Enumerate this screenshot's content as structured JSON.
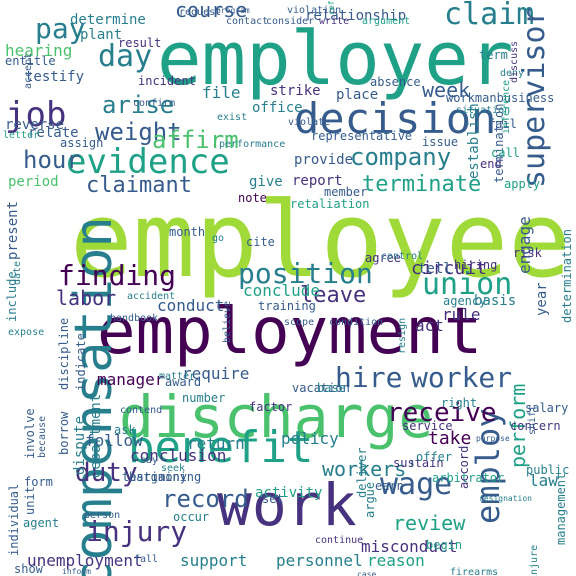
{
  "colors": {
    "background": "#ffffff",
    "palette": [
      "#440154",
      "#46327e",
      "#365c8d",
      "#277f8e",
      "#1fa187",
      "#4ac16d",
      "#a0da39",
      "#fde725"
    ]
  },
  "words": [
    {
      "text": "employee"
    },
    {
      "text": "employer"
    },
    {
      "text": "employment"
    },
    {
      "text": "work"
    },
    {
      "text": "discharge"
    },
    {
      "text": "compensation"
    },
    {
      "text": "decision"
    },
    {
      "text": "benefit"
    },
    {
      "text": "evidence"
    },
    {
      "text": "claim"
    },
    {
      "text": "supervisor"
    },
    {
      "text": "union"
    },
    {
      "text": "position"
    },
    {
      "text": "finding"
    },
    {
      "text": "job"
    },
    {
      "text": "wage"
    },
    {
      "text": "employ"
    },
    {
      "text": "day"
    },
    {
      "text": "hire"
    },
    {
      "text": "worker"
    },
    {
      "text": "receive"
    },
    {
      "text": "injury"
    },
    {
      "text": "duty"
    },
    {
      "text": "record"
    },
    {
      "text": "company"
    },
    {
      "text": "claimant"
    },
    {
      "text": "arise"
    },
    {
      "text": "weight"
    },
    {
      "text": "affirm"
    },
    {
      "text": "hour"
    },
    {
      "text": "course"
    },
    {
      "text": "pay"
    },
    {
      "text": "terminate"
    },
    {
      "text": "labor"
    },
    {
      "text": "leave"
    },
    {
      "text": "perform"
    },
    {
      "text": "workers'"
    },
    {
      "text": "review"
    },
    {
      "text": "week"
    },
    {
      "text": "unemployment"
    },
    {
      "text": "personnel"
    },
    {
      "text": "reason"
    },
    {
      "text": "support"
    },
    {
      "text": "misconduct"
    },
    {
      "text": "circuit"
    },
    {
      "text": "conduct"
    },
    {
      "text": "conclude"
    },
    {
      "text": "manager"
    },
    {
      "text": "require"
    },
    {
      "text": "follow"
    },
    {
      "text": "return"
    },
    {
      "text": "policy"
    },
    {
      "text": "activity"
    },
    {
      "text": "take"
    },
    {
      "text": "conclusion"
    },
    {
      "text": "law"
    },
    {
      "text": "tell"
    },
    {
      "text": "engage"
    },
    {
      "text": "year"
    },
    {
      "text": "basis"
    },
    {
      "text": "rule"
    },
    {
      "text": "act"
    },
    {
      "text": "dispute"
    },
    {
      "text": "department"
    },
    {
      "text": "determine"
    },
    {
      "text": "plant"
    },
    {
      "text": "hearing"
    },
    {
      "text": "testify"
    },
    {
      "text": "relationship"
    },
    {
      "text": "contact"
    },
    {
      "text": "consider"
    },
    {
      "text": "establish"
    },
    {
      "text": "termination"
    },
    {
      "text": "file"
    },
    {
      "text": "office"
    },
    {
      "text": "strike"
    },
    {
      "text": "place"
    },
    {
      "text": "provide"
    },
    {
      "text": "representative"
    },
    {
      "text": "issue"
    },
    {
      "text": "report"
    },
    {
      "text": "member"
    },
    {
      "text": "give"
    },
    {
      "text": "note"
    },
    {
      "text": "period"
    },
    {
      "text": "reverse"
    },
    {
      "text": "relate"
    },
    {
      "text": "assign"
    },
    {
      "text": "incident"
    },
    {
      "text": "result"
    },
    {
      "text": "entitle"
    },
    {
      "text": "present"
    },
    {
      "text": "include"
    },
    {
      "text": "month"
    },
    {
      "text": "cite"
    },
    {
      "text": "agree"
    },
    {
      "text": "hiring"
    },
    {
      "text": "risk"
    },
    {
      "text": "determination"
    },
    {
      "text": "salary"
    },
    {
      "text": "concern"
    },
    {
      "text": "right"
    },
    {
      "text": "service"
    },
    {
      "text": "vacation"
    },
    {
      "text": "base"
    },
    {
      "text": "factor"
    },
    {
      "text": "award"
    },
    {
      "text": "matter"
    },
    {
      "text": "number"
    },
    {
      "text": "bargaining"
    },
    {
      "text": "seek"
    },
    {
      "text": "deliver"
    },
    {
      "text": "arbitrator"
    },
    {
      "text": "sustain"
    },
    {
      "text": "offer"
    },
    {
      "text": "earn"
    },
    {
      "text": "argue"
    },
    {
      "text": "set"
    },
    {
      "text": "occur"
    },
    {
      "text": "continue"
    },
    {
      "text": "show"
    },
    {
      "text": "begin"
    },
    {
      "text": "accord"
    },
    {
      "text": "management"
    },
    {
      "text": "injure"
    },
    {
      "text": "testimony"
    },
    {
      "text": "form"
    },
    {
      "text": "agent"
    },
    {
      "text": "person"
    },
    {
      "text": "unit"
    },
    {
      "text": "individual"
    },
    {
      "text": "involve"
    },
    {
      "text": "because"
    },
    {
      "text": "borrow"
    },
    {
      "text": "discipline"
    },
    {
      "text": "indicate"
    },
    {
      "text": "contend"
    },
    {
      "text": "ask"
    },
    {
      "text": "say"
    },
    {
      "text": "believe"
    },
    {
      "text": "training"
    },
    {
      "text": "agency"
    },
    {
      "text": "scope"
    },
    {
      "text": "condition"
    },
    {
      "text": "handbook"
    },
    {
      "text": "accident"
    },
    {
      "text": "expose"
    },
    {
      "text": "date"
    },
    {
      "text": "resign"
    },
    {
      "text": "control"
    },
    {
      "text": "retaliation"
    },
    {
      "text": "go"
    },
    {
      "text": "absence"
    },
    {
      "text": "violate"
    },
    {
      "text": "exist"
    },
    {
      "text": "performance"
    },
    {
      "text": "confirm"
    },
    {
      "text": "accept"
    },
    {
      "text": "letter"
    },
    {
      "text": "violation"
    },
    {
      "text": "write"
    },
    {
      "text": "argument"
    },
    {
      "text": "referee"
    },
    {
      "text": "term"
    },
    {
      "text": "deny"
    },
    {
      "text": "discuss"
    },
    {
      "text": "workmanbusiness"
    },
    {
      "text": "situation"
    },
    {
      "text": "fail"
    },
    {
      "text": "call"
    },
    {
      "text": "end"
    },
    {
      "text": "inference"
    },
    {
      "text": "apply"
    },
    {
      "text": "request"
    },
    {
      "text": "program"
    },
    {
      "text": "public"
    },
    {
      "text": "shift"
    },
    {
      "text": "purpose"
    },
    {
      "text": "resignation"
    },
    {
      "text": "inform"
    },
    {
      "text": "fall"
    },
    {
      "text": "firearms"
    },
    {
      "text": "case"
    }
  ]
}
